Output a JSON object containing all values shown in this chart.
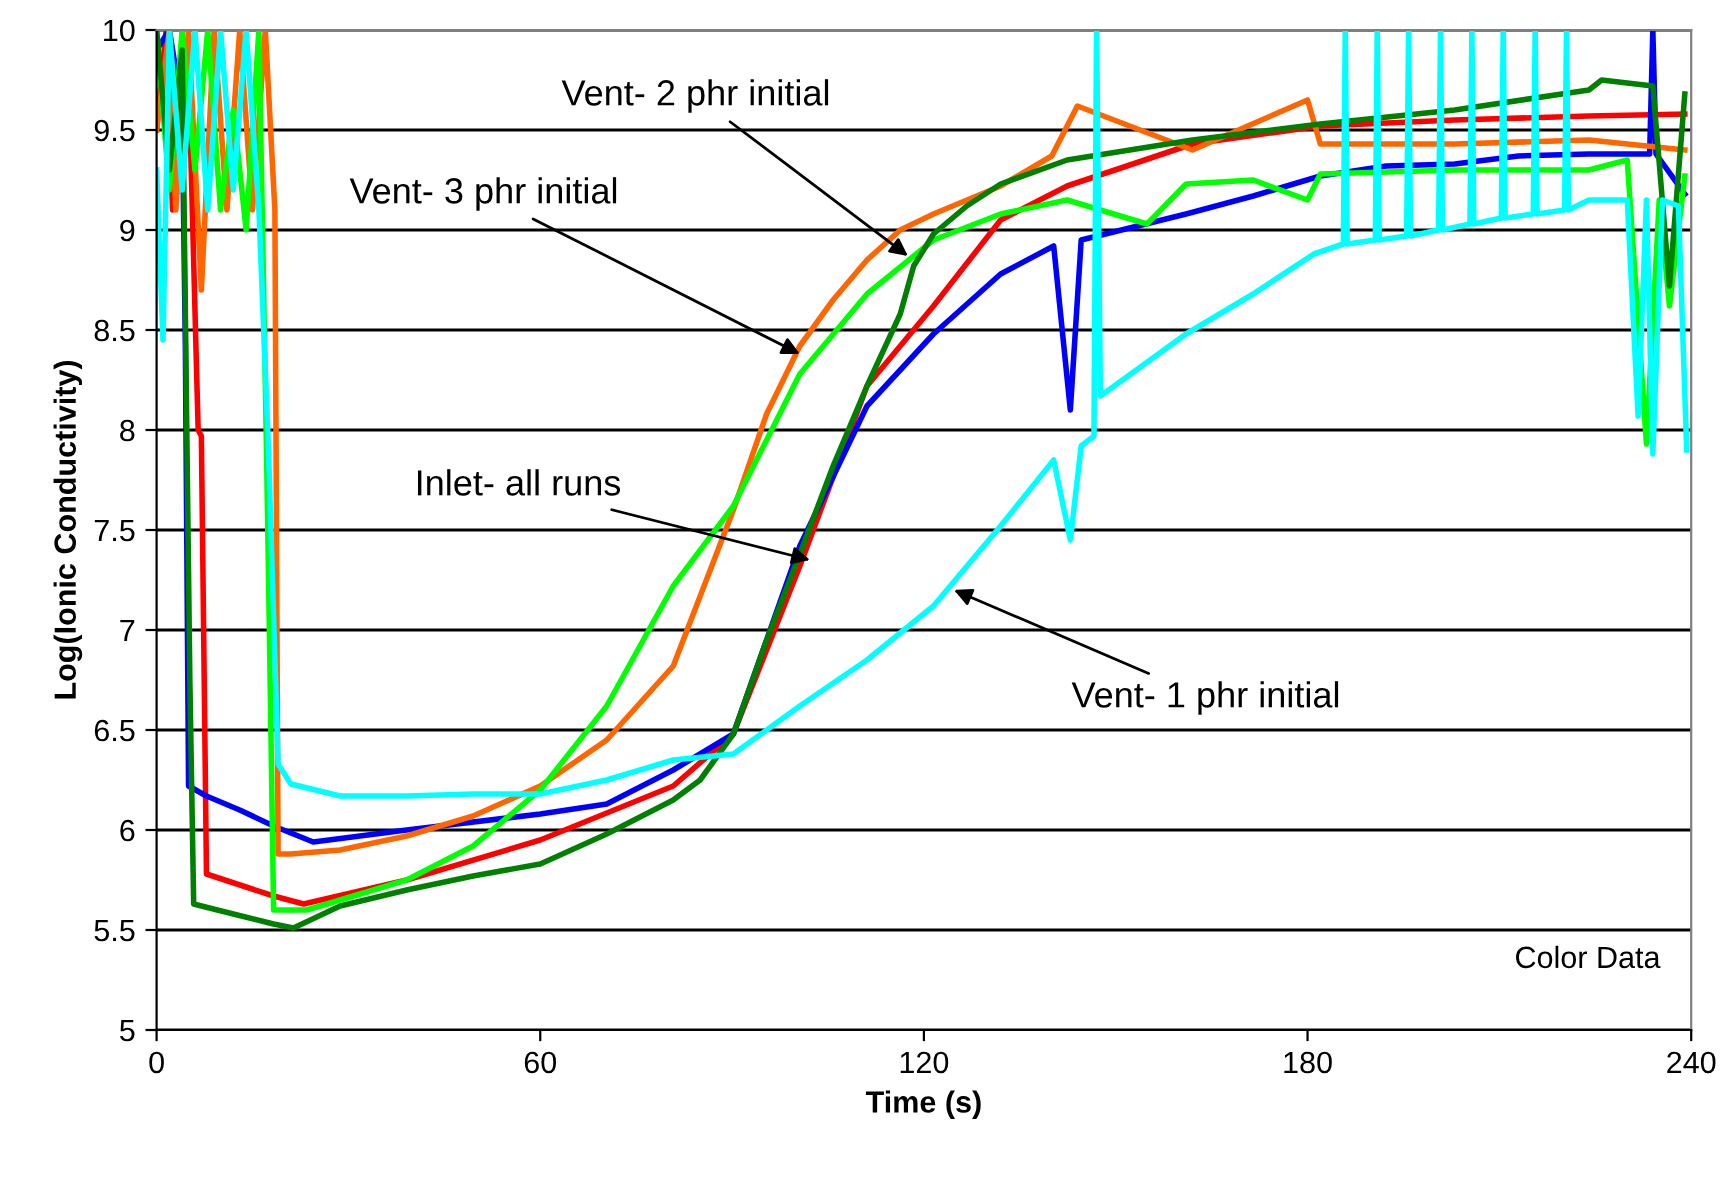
{
  "chart_data": {
    "type": "line",
    "xlabel": "Time (s)",
    "ylabel": "Log(Ionic Conductivity)",
    "xlim": [
      0,
      240
    ],
    "ylim": [
      5,
      10
    ],
    "xticks": [
      0,
      60,
      120,
      180,
      240
    ],
    "yticks": [
      5,
      5.5,
      6,
      6.5,
      7,
      7.5,
      8,
      8.5,
      9,
      9.5,
      10
    ],
    "grid": "y",
    "marker": "none",
    "line_style": "solid",
    "annotations": [
      {
        "text": "Vent- 2 phr initial",
        "x": 117.5,
        "y": 8.87
      },
      {
        "text": "Vent- 3 phr initial",
        "x": 100.6,
        "y": 8.38
      },
      {
        "text": "Inlet- all runs",
        "x": 102.2,
        "y": 7.35
      },
      {
        "text": "Vent- 1 phr initial",
        "x": 124.7,
        "y": 7.2
      },
      "Color Data"
    ],
    "series": [
      {
        "color": "#ff0000",
        "x": [
          0,
          1.5,
          2.5,
          3.5,
          5,
          6.5,
          7,
          7.8,
          18.3,
          23,
          39.1,
          60,
          80.8,
          90.2,
          100.6,
          111.1,
          121.5,
          132,
          142.4,
          162,
          182,
          203,
          224,
          239
        ],
        "values": [
          9.5,
          10,
          9.1,
          9.6,
          9.8,
          8.0,
          7.97,
          5.78,
          5.67,
          5.63,
          5.75,
          5.95,
          6.22,
          6.48,
          7.32,
          8.22,
          8.62,
          9.05,
          9.22,
          9.43,
          9.52,
          9.55,
          9.57,
          9.58
        ]
      },
      {
        "color": "#0000ff",
        "x": [
          0,
          2,
          4,
          4.5,
          5,
          7.8,
          13,
          18.3,
          24.5,
          39.1,
          60,
          70.4,
          80.8,
          90.2,
          100.6,
          111.1,
          121.5,
          132,
          140.3,
          142.9,
          144.6,
          161,
          171.5,
          182,
          192.3,
          203,
          213,
          224,
          233.5,
          234,
          234.5,
          239
        ],
        "values": [
          9.9,
          10,
          9.6,
          8.42,
          6.22,
          6.17,
          6.1,
          6.02,
          5.94,
          6.0,
          6.08,
          6.13,
          6.3,
          6.48,
          7.42,
          8.12,
          8.48,
          8.78,
          8.92,
          8.1,
          8.95,
          9.08,
          9.17,
          9.27,
          9.32,
          9.33,
          9.37,
          9.38,
          9.38,
          10,
          9.38,
          9.18
        ]
      },
      {
        "color": "#ff6600",
        "x": [
          0,
          2,
          3,
          5,
          7,
          9,
          11,
          13,
          15,
          17,
          18.5,
          19,
          21,
          28.7,
          39.1,
          49.5,
          60,
          70.4,
          80.8,
          90.2,
          95.4,
          100.6,
          105.8,
          111.1,
          116.3,
          121.5,
          132,
          140,
          144,
          162,
          180,
          182,
          203,
          224,
          239
        ],
        "values": [
          9.5,
          10,
          9.1,
          10,
          8.7,
          10,
          9.1,
          10,
          9.1,
          10,
          9.1,
          5.88,
          5.88,
          5.9,
          5.97,
          6.07,
          6.22,
          6.45,
          6.82,
          7.6,
          8.08,
          8.42,
          8.65,
          8.85,
          9.0,
          9.08,
          9.22,
          9.37,
          9.62,
          9.4,
          9.65,
          9.43,
          9.43,
          9.45,
          9.4
        ]
      },
      {
        "color": "#00ff00",
        "x": [
          0,
          2,
          4,
          6,
          8,
          10,
          12,
          14,
          16,
          17.2,
          17.6,
          18.3,
          23.5,
          39.1,
          49.5,
          60,
          70.4,
          80.8,
          90.2,
          100.6,
          111.1,
          121.5,
          132,
          142.4,
          154.9,
          161,
          171.5,
          180,
          182,
          203,
          224,
          230,
          233,
          235,
          236.6,
          239
        ],
        "values": [
          10,
          9.2,
          10,
          9.3,
          10,
          9.1,
          9.6,
          9.0,
          10,
          7.88,
          7.07,
          5.6,
          5.6,
          5.75,
          5.92,
          6.2,
          6.62,
          7.22,
          7.62,
          8.28,
          8.68,
          8.95,
          9.08,
          9.15,
          9.03,
          9.23,
          9.25,
          9.15,
          9.28,
          9.3,
          9.3,
          9.35,
          7.93,
          9.15,
          8.62,
          9.27
        ]
      },
      {
        "color": "#008000",
        "x": [
          0,
          2,
          4,
          5.2,
          5.8,
          9.5,
          18.3,
          21.4,
          28.7,
          39.1,
          49.5,
          60,
          70.4,
          80.8,
          85,
          90.2,
          95.4,
          100.6,
          105.8,
          111.1,
          116.3,
          118.4,
          121.5,
          126.7,
          132,
          142.4,
          162,
          182,
          203,
          224,
          226,
          234,
          236.6,
          239
        ],
        "values": [
          10,
          9.3,
          9.9,
          6.75,
          5.63,
          5.6,
          5.53,
          5.51,
          5.62,
          5.7,
          5.77,
          5.83,
          5.98,
          6.15,
          6.25,
          6.48,
          6.95,
          7.38,
          7.82,
          8.22,
          8.58,
          8.82,
          8.98,
          9.12,
          9.23,
          9.35,
          9.45,
          9.53,
          9.6,
          9.7,
          9.75,
          9.72,
          8.72,
          9.68
        ]
      },
      {
        "color": "#00ffff",
        "x": [
          0,
          1,
          2,
          4,
          6,
          8,
          10,
          12,
          14,
          16,
          17.5,
          19,
          21,
          28.7,
          39.1,
          49.5,
          60,
          70.4,
          80.8,
          90.2,
          100.6,
          111.1,
          121.5,
          132,
          140.3,
          142.9,
          144.6,
          146.6,
          147,
          147.6,
          161,
          171.5,
          181,
          185.6,
          185.9,
          186.2,
          190.6,
          190.9,
          191.2,
          195.5,
          195.8,
          196.1,
          200.5,
          200.8,
          201.1,
          205.4,
          205.7,
          206,
          210.3,
          210.6,
          210.9,
          215.3,
          215.6,
          215.9,
          220.2,
          220.5,
          220.8,
          224,
          230,
          231.7,
          233,
          234,
          235.5,
          238,
          239.3
        ],
        "values": [
          9.3,
          8.45,
          10,
          9.2,
          10,
          9.1,
          10,
          9.2,
          10,
          9.1,
          7.9,
          6.33,
          6.23,
          6.17,
          6.17,
          6.18,
          6.18,
          6.25,
          6.35,
          6.38,
          6.62,
          6.85,
          7.12,
          7.52,
          7.85,
          7.45,
          7.92,
          7.97,
          10,
          8.17,
          8.48,
          8.68,
          8.88,
          8.93,
          10,
          8.93,
          8.95,
          10,
          8.95,
          8.97,
          10,
          8.97,
          9.0,
          10,
          9.0,
          9.03,
          10,
          9.03,
          9.06,
          10,
          9.06,
          9.08,
          10,
          9.08,
          9.1,
          10,
          9.1,
          9.15,
          9.15,
          8.07,
          9.15,
          7.88,
          9.15,
          9.12,
          7.9
        ]
      }
    ]
  }
}
